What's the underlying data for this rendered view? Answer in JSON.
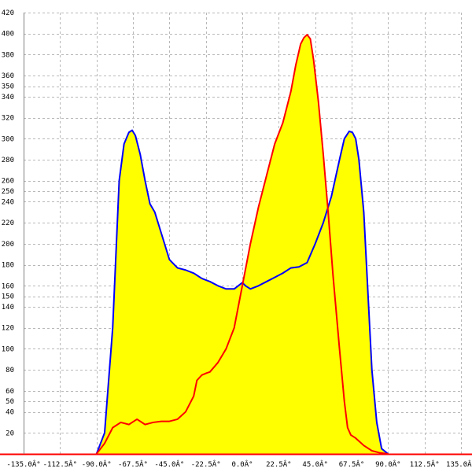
{
  "chart_data": {
    "type": "area",
    "title": "",
    "xlabel": "",
    "ylabel": "",
    "xlim": [
      -135,
      135
    ],
    "ylim": [
      0,
      420
    ],
    "grid": true,
    "x_ticks": [
      -135,
      -112.5,
      -90,
      -67.5,
      -45,
      -22.5,
      0,
      22.5,
      45,
      67.5,
      90,
      112.5,
      135
    ],
    "x_tick_labels": [
      "-135.0Â°",
      "-112.5Â°",
      "-90.0Â°",
      "-67.5Â°",
      "-45.0Â°",
      "-22.5Â°",
      "0.0Â°",
      "22.5Â°",
      "45.0Â°",
      "67.5Â°",
      "90.0Â°",
      "112.5Â°",
      "135.0Â°"
    ],
    "y_ticks": [
      20,
      40,
      50,
      60,
      80,
      100,
      120,
      140,
      150,
      160,
      180,
      200,
      220,
      240,
      250,
      260,
      280,
      300,
      320,
      340,
      350,
      360,
      380,
      400,
      420
    ],
    "y_tick_labels": [
      "20",
      "40",
      "50",
      "60",
      "80",
      "100",
      "120",
      "140",
      "150",
      "160",
      "180",
      "200",
      "220",
      "240",
      "250",
      "260",
      "280",
      "300",
      "320",
      "340",
      "350",
      "360",
      "380",
      "400",
      "420"
    ],
    "fill_color": "#ffff00",
    "series": [
      {
        "color": "#0000ff",
        "x": [
          -90,
          -85,
          -80,
          -76,
          -73,
          -70,
          -68,
          -66,
          -63,
          -60,
          -57,
          -54,
          -50,
          -45,
          -40,
          -35,
          -30,
          -25,
          -20,
          -15,
          -10,
          -5,
          0,
          2,
          5,
          10,
          15,
          20,
          25,
          30,
          35,
          40,
          45,
          50,
          55,
          60,
          63,
          66,
          68,
          70,
          72,
          75,
          78,
          80,
          83,
          86,
          90
        ],
        "y": [
          0,
          20,
          120,
          260,
          295,
          306,
          308,
          303,
          285,
          260,
          238,
          230,
          210,
          185,
          177,
          175,
          172,
          167,
          164,
          160,
          157,
          157,
          163,
          160,
          157,
          160,
          164,
          168,
          172,
          177,
          178,
          182,
          200,
          220,
          245,
          280,
          300,
          307,
          306,
          300,
          280,
          230,
          140,
          80,
          30,
          5,
          0
        ]
      },
      {
        "color": "#ff0000",
        "x": [
          -90,
          -85,
          -80,
          -75,
          -70,
          -68,
          -65,
          -60,
          -55,
          -50,
          -45,
          -40,
          -35,
          -30,
          -28,
          -25,
          -22,
          -20,
          -15,
          -10,
          -5,
          0,
          5,
          10,
          15,
          20,
          25,
          30,
          33,
          36,
          38,
          40,
          42,
          44,
          47,
          50,
          53,
          56,
          60,
          63,
          65,
          67,
          70,
          75,
          80,
          85,
          90
        ],
        "y": [
          0,
          10,
          25,
          30,
          28,
          30,
          33,
          28,
          30,
          31,
          31,
          33,
          40,
          55,
          70,
          75,
          77,
          78,
          87,
          100,
          120,
          160,
          200,
          235,
          265,
          295,
          315,
          345,
          370,
          390,
          396,
          399,
          395,
          375,
          335,
          285,
          230,
          170,
          100,
          50,
          25,
          18,
          15,
          8,
          3,
          1,
          0
        ]
      }
    ]
  }
}
